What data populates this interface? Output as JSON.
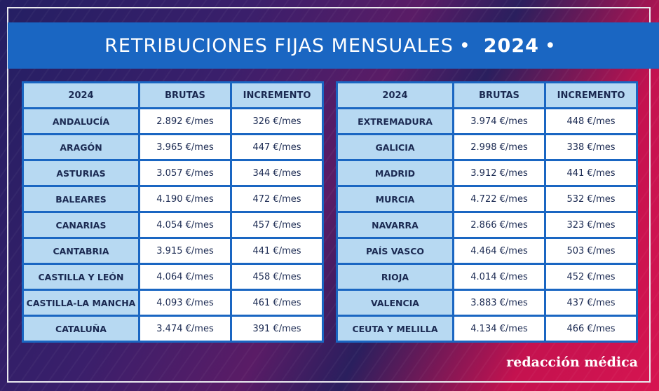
{
  "title": {
    "text": "RETRIBUCIONES FIJAS MENSUALES",
    "separator": "•",
    "year": "2024"
  },
  "headers": [
    "2024",
    "BRUTAS",
    "INCREMENTO"
  ],
  "left_rows": [
    {
      "region": "ANDALUCÍA",
      "brutas": "2.892 €/mes",
      "incremento": "326 €/mes"
    },
    {
      "region": "ARAGÓN",
      "brutas": "3.965 €/mes",
      "incremento": "447 €/mes"
    },
    {
      "region": "ASTURIAS",
      "brutas": "3.057 €/mes",
      "incremento": "344 €/mes"
    },
    {
      "region": "BALEARES",
      "brutas": "4.190 €/mes",
      "incremento": "472 €/mes"
    },
    {
      "region": "CANARIAS",
      "brutas": "4.054 €/mes",
      "incremento": "457 €/mes"
    },
    {
      "region": "CANTABRIA",
      "brutas": "3.915 €/mes",
      "incremento": "441 €/mes"
    },
    {
      "region": "CASTILLA Y LEÓN",
      "brutas": "4.064 €/mes",
      "incremento": "458 €/mes"
    },
    {
      "region": "CASTILLA-LA MANCHA",
      "brutas": "4.093 €/mes",
      "incremento": "461 €/mes"
    },
    {
      "region": "CATALUÑA",
      "brutas": "3.474 €/mes",
      "incremento": "391 €/mes"
    }
  ],
  "right_rows": [
    {
      "region": "EXTREMADURA",
      "brutas": "3.974 €/mes",
      "incremento": "448 €/mes"
    },
    {
      "region": "GALICIA",
      "brutas": "2.998 €/mes",
      "incremento": "338 €/mes"
    },
    {
      "region": "MADRID",
      "brutas": "3.912 €/mes",
      "incremento": "441 €/mes"
    },
    {
      "region": "MURCIA",
      "brutas": "4.722 €/mes",
      "incremento": "532 €/mes"
    },
    {
      "region": "NAVARRA",
      "brutas": "2.866 €/mes",
      "incremento": "323 €/mes"
    },
    {
      "region": "PAÍS VASCO",
      "brutas": "4.464 €/mes",
      "incremento": "503 €/mes"
    },
    {
      "region": "RIOJA",
      "brutas": "4.014 €/mes",
      "incremento": "452 €/mes"
    },
    {
      "region": "VALENCIA",
      "brutas": "3.883 €/mes",
      "incremento": "437 €/mes"
    },
    {
      "region": "CEUTA Y MELILLA",
      "brutas": "4.134 €/mes",
      "incremento": "466 €/mes"
    }
  ],
  "brand": "redacción médica",
  "colors": {
    "banner": "#1a66c2",
    "header_cell": "#b7d9f2",
    "text": "#1b2a52",
    "magenta": "#d61450",
    "indigo": "#241f63"
  }
}
